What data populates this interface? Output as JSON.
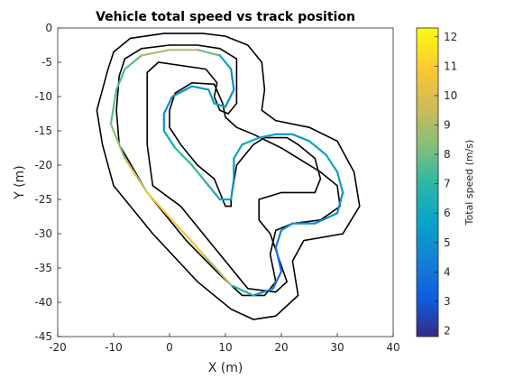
{
  "chart_data": {
    "type": "scatter",
    "title": "Vehicle total speed vs track position",
    "xlabel": "X (m)",
    "ylabel": "Y (m)",
    "xlim": [
      -20,
      40
    ],
    "ylim": [
      -45,
      0
    ],
    "xticks": [
      "-20",
      "-10",
      "0",
      "10",
      "20",
      "30",
      "40"
    ],
    "yticks": [
      "0",
      "-5",
      "-10",
      "-15",
      "-20",
      "-25",
      "-30",
      "-35",
      "-40",
      "-45"
    ],
    "grid": false,
    "colorbar": {
      "label": "Total speed (m/s)",
      "range": [
        1.8,
        12.3
      ],
      "ticks": [
        "2",
        "3",
        "4",
        "5",
        "6",
        "7",
        "8",
        "9",
        "10",
        "11",
        "12"
      ],
      "colormap": "parula"
    },
    "track_boundaries": {
      "color": "#000000",
      "outer": [
        [
          -11,
          -6
        ],
        [
          -10,
          -3.5
        ],
        [
          -7,
          -1.5
        ],
        [
          -1,
          -0.8
        ],
        [
          6,
          -0.8
        ],
        [
          10,
          -1.2
        ],
        [
          14,
          -2.5
        ],
        [
          16.5,
          -5
        ],
        [
          17,
          -9
        ],
        [
          16.5,
          -12
        ],
        [
          19,
          -13.5
        ],
        [
          25,
          -14.5
        ],
        [
          30,
          -16.5
        ],
        [
          33,
          -21
        ],
        [
          34,
          -26
        ],
        [
          31,
          -30
        ],
        [
          24,
          -31
        ],
        [
          22,
          -34
        ],
        [
          23,
          -39
        ],
        [
          19,
          -42
        ],
        [
          15,
          -42.5
        ],
        [
          11,
          -41
        ],
        [
          5,
          -37
        ],
        [
          -3,
          -30
        ],
        [
          -10,
          -23
        ],
        [
          -12,
          -17
        ],
        [
          -13,
          -12
        ],
        [
          -11,
          -6
        ]
      ],
      "inner": [
        [
          -9,
          -7
        ],
        [
          -8,
          -4.5
        ],
        [
          -5,
          -3
        ],
        [
          0,
          -2.5
        ],
        [
          5,
          -2.5
        ],
        [
          9,
          -3
        ],
        [
          12,
          -4.5
        ],
        [
          12,
          -9
        ],
        [
          12,
          -11
        ],
        [
          10.5,
          -12.5
        ],
        [
          9,
          -12
        ],
        [
          8,
          -10
        ],
        [
          8.5,
          -8
        ],
        [
          6.5,
          -6
        ],
        [
          -2,
          -5
        ],
        [
          -4,
          -6.5
        ],
        [
          -4,
          -10
        ],
        [
          -4,
          -17
        ],
        [
          -3,
          -23
        ],
        [
          2,
          -26
        ],
        [
          7,
          -31
        ],
        [
          12,
          -36
        ],
        [
          14,
          -38
        ],
        [
          19,
          -38.5
        ],
        [
          21,
          -37
        ],
        [
          18,
          -30
        ],
        [
          16,
          -28
        ],
        [
          16,
          -25
        ],
        [
          20,
          -24
        ],
        [
          26,
          -24
        ],
        [
          27,
          -22
        ],
        [
          26,
          -19
        ],
        [
          23,
          -17
        ],
        [
          21,
          -16
        ],
        [
          17,
          -16
        ],
        [
          15,
          -17
        ],
        [
          12,
          -20
        ],
        [
          11,
          -25
        ],
        [
          11,
          -26
        ],
        [
          10,
          -26
        ],
        [
          9,
          -24
        ],
        [
          8,
          -22
        ],
        [
          5,
          -20
        ],
        [
          2,
          -17
        ],
        [
          0,
          -14.5
        ],
        [
          0,
          -12
        ],
        [
          1,
          -9.5
        ],
        [
          4,
          -8
        ],
        [
          8,
          -8.2
        ],
        [
          9.5,
          -11
        ],
        [
          10,
          -13
        ],
        [
          12,
          -14.5
        ],
        [
          15,
          -15.5
        ],
        [
          20,
          -17.5
        ],
        [
          24,
          -19.5
        ],
        [
          27,
          -21
        ],
        [
          30,
          -23
        ],
        [
          30.5,
          -26
        ],
        [
          27,
          -28
        ],
        [
          22,
          -28.5
        ],
        [
          19,
          -29.5
        ],
        [
          18,
          -33
        ],
        [
          19,
          -37
        ],
        [
          17,
          -39
        ],
        [
          13,
          -39
        ],
        [
          9,
          -36
        ],
        [
          3,
          -31
        ],
        [
          -4,
          -24
        ],
        [
          -9,
          -17
        ],
        [
          -9.5,
          -12
        ],
        [
          -9,
          -7
        ]
      ]
    },
    "trajectory": [
      {
        "x": -10.5,
        "y": -14,
        "speed": 8
      },
      {
        "x": -9.5,
        "y": -9,
        "speed": 7.5
      },
      {
        "x": -8,
        "y": -6,
        "speed": 7
      },
      {
        "x": -5,
        "y": -4,
        "speed": 8.5
      },
      {
        "x": 0,
        "y": -3.2,
        "speed": 9.5
      },
      {
        "x": 5,
        "y": -3.2,
        "speed": 9
      },
      {
        "x": 9,
        "y": -4,
        "speed": 7
      },
      {
        "x": 11,
        "y": -6,
        "speed": 5
      },
      {
        "x": 11.5,
        "y": -9,
        "speed": 4.5
      },
      {
        "x": 10,
        "y": -11.5,
        "speed": 5
      },
      {
        "x": 8,
        "y": -11,
        "speed": 5.5
      },
      {
        "x": 7,
        "y": -9,
        "speed": 5
      },
      {
        "x": 4,
        "y": -8.5,
        "speed": 5
      },
      {
        "x": 0.5,
        "y": -10,
        "speed": 5
      },
      {
        "x": -1,
        "y": -12.5,
        "speed": 4.5
      },
      {
        "x": -1,
        "y": -15,
        "speed": 5.5
      },
      {
        "x": 1,
        "y": -17.5,
        "speed": 6.5
      },
      {
        "x": 4,
        "y": -20,
        "speed": 7.5
      },
      {
        "x": 6.5,
        "y": -22.5,
        "speed": 7
      },
      {
        "x": 9,
        "y": -25,
        "speed": 6
      },
      {
        "x": 11,
        "y": -25,
        "speed": 5
      },
      {
        "x": 11.5,
        "y": -22,
        "speed": 5
      },
      {
        "x": 11.5,
        "y": -19,
        "speed": 5.5
      },
      {
        "x": 13,
        "y": -17,
        "speed": 6
      },
      {
        "x": 16,
        "y": -16,
        "speed": 6
      },
      {
        "x": 19,
        "y": -15.5,
        "speed": 5
      },
      {
        "x": 22,
        "y": -15.5,
        "speed": 5
      },
      {
        "x": 25,
        "y": -16.5,
        "speed": 5.5
      },
      {
        "x": 28,
        "y": -18.5,
        "speed": 6
      },
      {
        "x": 30,
        "y": -21,
        "speed": 6
      },
      {
        "x": 31,
        "y": -24,
        "speed": 5
      },
      {
        "x": 30,
        "y": -27,
        "speed": 4.5
      },
      {
        "x": 26,
        "y": -28.5,
        "speed": 5
      },
      {
        "x": 22,
        "y": -28.5,
        "speed": 5
      },
      {
        "x": 20,
        "y": -29.5,
        "speed": 4.5
      },
      {
        "x": 19,
        "y": -32,
        "speed": 4
      },
      {
        "x": 20,
        "y": -35.5,
        "speed": 3.5
      },
      {
        "x": 18.5,
        "y": -38,
        "speed": 4
      },
      {
        "x": 15,
        "y": -39,
        "speed": 5.5
      },
      {
        "x": 11,
        "y": -37.5,
        "speed": 8
      },
      {
        "x": 6,
        "y": -33,
        "speed": 10
      },
      {
        "x": 1,
        "y": -28.5,
        "speed": 11
      },
      {
        "x": -4,
        "y": -24,
        "speed": 10.5
      },
      {
        "x": -8,
        "y": -19,
        "speed": 9
      },
      {
        "x": -10.5,
        "y": -14,
        "speed": 8
      }
    ]
  }
}
